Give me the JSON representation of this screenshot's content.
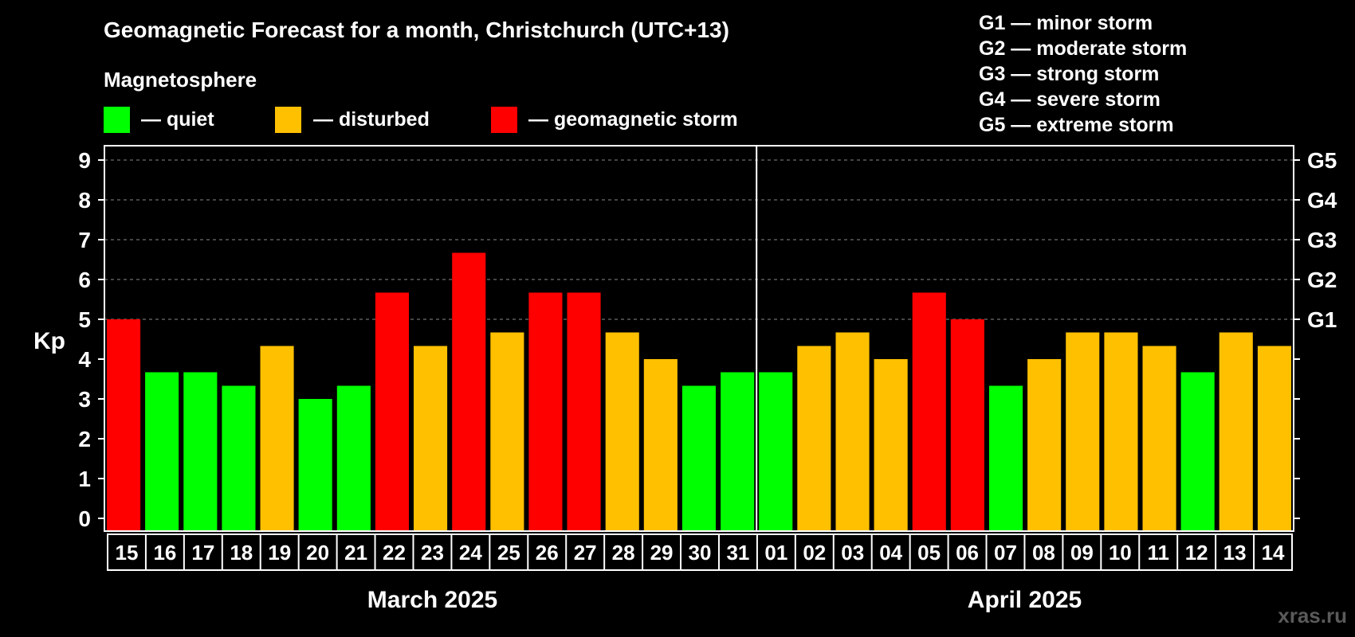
{
  "chart_data": {
    "type": "bar",
    "title": "Geomagnetic Forecast for a month, Christchurch (UTC+13)",
    "legend": {
      "heading": "Magnetosphere",
      "items": [
        {
          "key": "quiet",
          "label": "— quiet",
          "color": "#00ff00"
        },
        {
          "key": "disturbed",
          "label": "— disturbed",
          "color": "#ffc000"
        },
        {
          "key": "storm",
          "label": "— geomagnetic storm",
          "color": "#ff0000"
        }
      ]
    },
    "storm_scale": [
      "G1 — minor storm",
      "G2 — moderate storm",
      "G3 — strong storm",
      "G4 — severe storm",
      "G5 — extreme storm"
    ],
    "ylabel": "Kp",
    "ylim": [
      0,
      9
    ],
    "yticks": [
      "0",
      "1",
      "2",
      "3",
      "4",
      "5",
      "6",
      "7",
      "8",
      "9"
    ],
    "right_axis": [
      {
        "kp": 5,
        "label": "G1"
      },
      {
        "kp": 6,
        "label": "G2"
      },
      {
        "kp": 7,
        "label": "G3"
      },
      {
        "kp": 8,
        "label": "G4"
      },
      {
        "kp": 9,
        "label": "G5"
      }
    ],
    "categories": [
      "15",
      "16",
      "17",
      "18",
      "19",
      "20",
      "21",
      "22",
      "23",
      "24",
      "25",
      "26",
      "27",
      "28",
      "29",
      "30",
      "31",
      "01",
      "02",
      "03",
      "04",
      "05",
      "06",
      "07",
      "08",
      "09",
      "10",
      "11",
      "12",
      "13",
      "14"
    ],
    "values": [
      5.0,
      3.67,
      3.67,
      3.33,
      4.33,
      3.0,
      3.33,
      5.67,
      4.33,
      6.67,
      4.67,
      5.67,
      5.67,
      4.67,
      4.0,
      3.33,
      3.67,
      3.67,
      4.33,
      4.67,
      4.0,
      5.67,
      5.0,
      3.33,
      4.0,
      4.67,
      4.67,
      4.33,
      3.67,
      4.67,
      4.33
    ],
    "status": [
      "storm",
      "quiet",
      "quiet",
      "quiet",
      "disturbed",
      "quiet",
      "quiet",
      "storm",
      "disturbed",
      "storm",
      "disturbed",
      "storm",
      "storm",
      "disturbed",
      "disturbed",
      "quiet",
      "quiet",
      "quiet",
      "disturbed",
      "disturbed",
      "disturbed",
      "storm",
      "storm",
      "quiet",
      "disturbed",
      "disturbed",
      "disturbed",
      "disturbed",
      "quiet",
      "disturbed",
      "disturbed"
    ],
    "months": [
      {
        "label": "March 2025",
        "start": 0,
        "end": 16
      },
      {
        "label": "April 2025",
        "start": 17,
        "end": 30
      }
    ],
    "grid": true
  },
  "watermark": "xras.ru"
}
